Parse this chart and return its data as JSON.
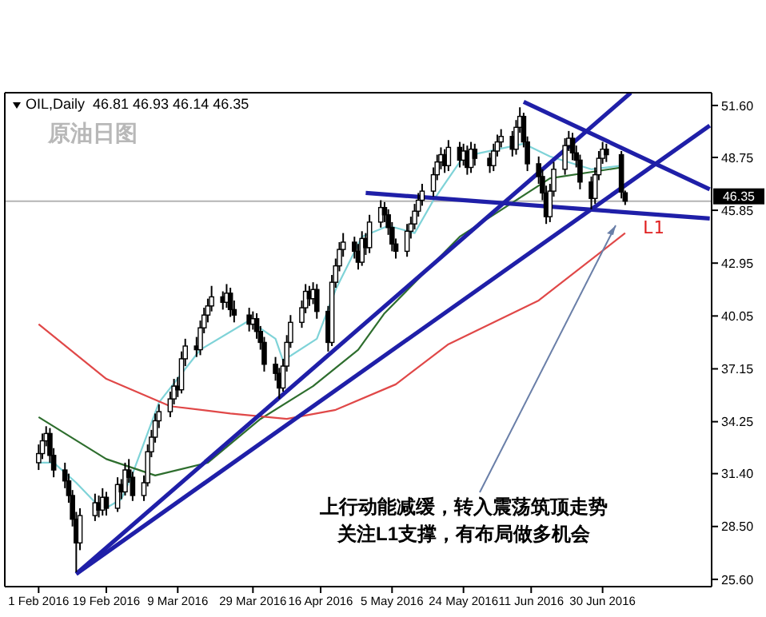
{
  "chart_data": {
    "type": "candlestick",
    "title": "OIL,Daily  46.81 46.93 46.14 46.35",
    "subtitle": "原油日图",
    "x": [
      "2016-02-01",
      "2016-02-02",
      "2016-02-03",
      "2016-02-04",
      "2016-02-05",
      "2016-02-08",
      "2016-02-09",
      "2016-02-10",
      "2016-02-11",
      "2016-02-12",
      "2016-02-16",
      "2016-02-17",
      "2016-02-18",
      "2016-02-19",
      "2016-02-22",
      "2016-02-23",
      "2016-02-24",
      "2016-02-25",
      "2016-02-26",
      "2016-02-29",
      "2016-03-01",
      "2016-03-02",
      "2016-03-03",
      "2016-03-04",
      "2016-03-07",
      "2016-03-08",
      "2016-03-09",
      "2016-03-10",
      "2016-03-11",
      "2016-03-14",
      "2016-03-15",
      "2016-03-16",
      "2016-03-17",
      "2016-03-18",
      "2016-03-21",
      "2016-03-22",
      "2016-03-23",
      "2016-03-24",
      "2016-03-28",
      "2016-03-29",
      "2016-03-30",
      "2016-03-31",
      "2016-04-01",
      "2016-04-04",
      "2016-04-05",
      "2016-04-06",
      "2016-04-07",
      "2016-04-08",
      "2016-04-11",
      "2016-04-12",
      "2016-04-13",
      "2016-04-14",
      "2016-04-15",
      "2016-04-18",
      "2016-04-19",
      "2016-04-20",
      "2016-04-21",
      "2016-04-22",
      "2016-04-25",
      "2016-04-26",
      "2016-04-27",
      "2016-04-28",
      "2016-04-29",
      "2016-05-02",
      "2016-05-03",
      "2016-05-04",
      "2016-05-05",
      "2016-05-06",
      "2016-05-09",
      "2016-05-10",
      "2016-05-11",
      "2016-05-12",
      "2016-05-13",
      "2016-05-16",
      "2016-05-17",
      "2016-05-18",
      "2016-05-19",
      "2016-05-20",
      "2016-05-23",
      "2016-05-24",
      "2016-05-25",
      "2016-05-26",
      "2016-05-27",
      "2016-05-31",
      "2016-06-01",
      "2016-06-02",
      "2016-06-03",
      "2016-06-06",
      "2016-06-07",
      "2016-06-08",
      "2016-06-09",
      "2016-06-10",
      "2016-06-13",
      "2016-06-14",
      "2016-06-15",
      "2016-06-16",
      "2016-06-17",
      "2016-06-20",
      "2016-06-21",
      "2016-06-22",
      "2016-06-23",
      "2016-06-24",
      "2016-06-27",
      "2016-06-28",
      "2016-06-29",
      "2016-06-30",
      "2016-07-01",
      "2016-07-05",
      "2016-07-06"
    ],
    "ohlc": [
      [
        32.0,
        33.0,
        31.6,
        32.5
      ],
      [
        32.5,
        33.6,
        32.2,
        33.2
      ],
      [
        33.2,
        34.0,
        32.9,
        33.6
      ],
      [
        33.6,
        33.9,
        32.0,
        32.4
      ],
      [
        32.4,
        32.8,
        31.2,
        31.6
      ],
      [
        31.6,
        32.0,
        30.6,
        31.0
      ],
      [
        31.0,
        31.4,
        29.8,
        30.2
      ],
      [
        30.2,
        30.5,
        28.5,
        28.9
      ],
      [
        28.9,
        29.3,
        26.0,
        27.6
      ],
      [
        27.6,
        29.5,
        27.2,
        29.1
      ],
      [
        29.1,
        30.3,
        28.8,
        29.8
      ],
      [
        29.8,
        30.2,
        29.0,
        29.4
      ],
      [
        29.4,
        30.6,
        29.1,
        30.1
      ],
      [
        30.1,
        30.4,
        29.1,
        29.5
      ],
      [
        29.5,
        31.2,
        29.3,
        30.8
      ],
      [
        30.8,
        31.1,
        30.0,
        30.4
      ],
      [
        30.4,
        32.0,
        30.2,
        31.6
      ],
      [
        31.6,
        32.2,
        30.9,
        31.2
      ],
      [
        31.2,
        31.5,
        29.9,
        30.2
      ],
      [
        30.2,
        31.3,
        29.9,
        30.9
      ],
      [
        30.9,
        33.0,
        30.7,
        32.6
      ],
      [
        32.6,
        33.8,
        32.3,
        33.4
      ],
      [
        33.4,
        34.7,
        33.1,
        34.3
      ],
      [
        34.3,
        35.2,
        33.9,
        34.8
      ],
      [
        34.8,
        35.9,
        34.5,
        35.5
      ],
      [
        35.5,
        36.6,
        35.2,
        36.2
      ],
      [
        36.2,
        36.7,
        35.6,
        36.0
      ],
      [
        36.0,
        38.1,
        35.8,
        37.7
      ],
      [
        37.7,
        38.8,
        37.3,
        38.4
      ],
      [
        38.4,
        38.9,
        37.8,
        38.2
      ],
      [
        38.2,
        39.8,
        37.9,
        39.4
      ],
      [
        39.4,
        40.5,
        39.1,
        40.1
      ],
      [
        40.1,
        41.0,
        39.7,
        40.6
      ],
      [
        40.6,
        41.7,
        40.3,
        41.1
      ],
      [
        41.1,
        41.4,
        40.4,
        40.8
      ],
      [
        40.8,
        41.8,
        40.5,
        41.3
      ],
      [
        41.3,
        41.6,
        40.0,
        40.4
      ],
      [
        40.4,
        40.9,
        39.7,
        40.1
      ],
      [
        40.1,
        40.5,
        39.2,
        39.6
      ],
      [
        39.6,
        40.3,
        39.3,
        39.9
      ],
      [
        39.9,
        40.2,
        38.8,
        39.2
      ],
      [
        39.2,
        39.5,
        38.2,
        38.6
      ],
      [
        38.6,
        38.9,
        37.0,
        37.4
      ],
      [
        37.4,
        37.8,
        36.5,
        36.9
      ],
      [
        36.9,
        37.2,
        35.5,
        36.1
      ],
      [
        36.1,
        37.7,
        35.9,
        37.3
      ],
      [
        37.3,
        39.0,
        37.0,
        38.6
      ],
      [
        38.6,
        40.1,
        38.3,
        39.7
      ],
      [
        39.7,
        40.9,
        39.4,
        40.5
      ],
      [
        40.5,
        41.8,
        40.2,
        41.4
      ],
      [
        41.4,
        41.7,
        40.6,
        41.0
      ],
      [
        41.0,
        41.9,
        40.7,
        41.5
      ],
      [
        41.5,
        41.8,
        39.9,
        40.3
      ],
      [
        40.3,
        40.6,
        38.1,
        38.6
      ],
      [
        38.6,
        42.3,
        38.4,
        41.9
      ],
      [
        41.9,
        43.2,
        41.6,
        42.8
      ],
      [
        42.8,
        44.1,
        42.5,
        43.7
      ],
      [
        43.7,
        44.6,
        43.3,
        44.1
      ],
      [
        44.1,
        44.4,
        43.2,
        43.6
      ],
      [
        43.6,
        44.0,
        42.6,
        43.0
      ],
      [
        43.0,
        44.7,
        42.8,
        44.3
      ],
      [
        44.3,
        44.6,
        43.4,
        43.8
      ],
      [
        43.8,
        45.6,
        43.5,
        45.2
      ],
      [
        45.2,
        46.4,
        44.9,
        46.0
      ],
      [
        46.0,
        46.3,
        45.2,
        45.6
      ],
      [
        45.6,
        45.9,
        44.5,
        44.9
      ],
      [
        44.9,
        45.2,
        43.6,
        44.0
      ],
      [
        44.0,
        44.3,
        43.2,
        43.6
      ],
      [
        43.6,
        45.1,
        43.3,
        44.7
      ],
      [
        44.7,
        45.5,
        44.3,
        45.1
      ],
      [
        45.1,
        46.2,
        44.8,
        45.8
      ],
      [
        45.8,
        46.8,
        45.5,
        46.4
      ],
      [
        46.4,
        47.3,
        46.1,
        46.9
      ],
      [
        46.9,
        48.2,
        46.6,
        47.8
      ],
      [
        47.8,
        48.9,
        47.5,
        48.5
      ],
      [
        48.5,
        49.3,
        48.1,
        48.9
      ],
      [
        48.9,
        49.2,
        47.9,
        48.3
      ],
      [
        48.3,
        49.7,
        48.0,
        49.3
      ],
      [
        49.3,
        49.6,
        48.2,
        48.6
      ],
      [
        48.6,
        49.5,
        48.3,
        49.1
      ],
      [
        49.1,
        49.4,
        47.8,
        48.2
      ],
      [
        48.2,
        49.6,
        47.9,
        49.2
      ],
      [
        49.2,
        49.5,
        48.3,
        48.7
      ],
      [
        48.7,
        49.0,
        47.9,
        48.3
      ],
      [
        48.3,
        49.5,
        48.0,
        49.1
      ],
      [
        49.1,
        50.0,
        48.8,
        49.6
      ],
      [
        49.6,
        50.3,
        49.3,
        49.9
      ],
      [
        49.9,
        50.2,
        48.8,
        49.2
      ],
      [
        49.2,
        50.8,
        48.9,
        50.4
      ],
      [
        50.4,
        51.5,
        50.1,
        51.0
      ],
      [
        51.0,
        51.2,
        49.3,
        49.6
      ],
      [
        49.6,
        49.9,
        48.0,
        48.4
      ],
      [
        48.4,
        48.8,
        47.3,
        47.7
      ],
      [
        47.7,
        48.1,
        46.4,
        46.8
      ],
      [
        46.8,
        47.2,
        45.1,
        45.5
      ],
      [
        45.5,
        47.3,
        45.2,
        46.9
      ],
      [
        46.9,
        48.5,
        46.6,
        48.1
      ],
      [
        48.1,
        49.8,
        47.8,
        49.4
      ],
      [
        49.4,
        50.2,
        49.1,
        49.8
      ],
      [
        49.8,
        50.1,
        48.6,
        49.0
      ],
      [
        49.0,
        49.4,
        48.2,
        48.6
      ],
      [
        48.6,
        48.9,
        47.0,
        47.4
      ],
      [
        47.4,
        47.7,
        45.9,
        46.5
      ],
      [
        46.5,
        48.2,
        46.2,
        47.8
      ],
      [
        47.8,
        49.1,
        47.5,
        48.7
      ],
      [
        48.7,
        49.6,
        48.4,
        49.2
      ],
      [
        49.2,
        49.5,
        48.5,
        48.9
      ],
      [
        48.9,
        49.1,
        46.5,
        46.85
      ],
      [
        46.81,
        46.93,
        46.14,
        46.35
      ]
    ],
    "series": [
      {
        "type": "line",
        "color": "#7fd3d8",
        "x": [
          "2016-02-01",
          "2016-02-05",
          "2016-02-11",
          "2016-02-18",
          "2016-02-23",
          "2016-02-26",
          "2016-03-04",
          "2016-03-15",
          "2016-03-28",
          "2016-04-04",
          "2016-04-06",
          "2016-04-15",
          "2016-04-20",
          "2016-04-27",
          "2016-05-04",
          "2016-05-11",
          "2016-05-16",
          "2016-05-24",
          "2016-06-09",
          "2016-06-16",
          "2016-06-27",
          "2016-07-05"
        ],
        "values": [
          32.0,
          32.0,
          30.9,
          29.4,
          30.0,
          31.4,
          35.3,
          38.2,
          39.8,
          38.8,
          37.6,
          38.8,
          41.5,
          44.4,
          45.0,
          44.6,
          46.4,
          48.8,
          49.5,
          48.8,
          48.1,
          48.3
        ]
      },
      {
        "type": "line",
        "color": "#2e6e2e",
        "x": [
          "2016-02-01",
          "2016-02-19",
          "2016-03-03",
          "2016-03-17",
          "2016-03-31",
          "2016-04-14",
          "2016-04-26",
          "2016-05-03",
          "2016-05-23",
          "2016-06-16",
          "2016-07-05"
        ],
        "values": [
          34.5,
          32.2,
          31.3,
          32.0,
          34.4,
          36.2,
          38.2,
          40.2,
          44.4,
          47.6,
          48.2
        ]
      },
      {
        "type": "line",
        "color": "#e04848",
        "x": [
          "2016-02-01",
          "2016-02-19",
          "2016-03-07",
          "2016-03-23",
          "2016-04-07",
          "2016-04-20",
          "2016-05-06",
          "2016-05-20",
          "2016-06-13",
          "2016-07-06"
        ],
        "values": [
          39.6,
          36.6,
          35.1,
          34.7,
          34.4,
          34.9,
          36.3,
          38.5,
          40.9,
          44.6
        ]
      },
      {
        "type": "line",
        "color": "#1f1fa8",
        "x": [
          "2016-02-11",
          "2016-07-07T12:00"
        ],
        "values": [
          25.9,
          52.3
        ]
      },
      {
        "type": "line",
        "color": "#1f1fa8",
        "x": [
          "2016-02-11",
          "2016-07-28T12:00"
        ],
        "values": [
          25.9,
          50.5
        ]
      },
      {
        "type": "line",
        "color": "#1f1fa8",
        "x": [
          "2016-06-09",
          "2016-07-28T12:00"
        ],
        "values": [
          51.8,
          47.0
        ]
      },
      {
        "type": "line",
        "color": "#1f1fa8",
        "x": [
          "2016-04-28",
          "2016-07-28T12:00"
        ],
        "values": [
          46.8,
          45.4
        ]
      }
    ],
    "ref_lines": [
      {
        "axis": "y",
        "value": 46.35,
        "label": "46.35",
        "color": "#b4b4b4"
      }
    ],
    "annotations": [
      "L1",
      "上行动能减缓，转入震荡筑顶走势",
      "关注L1支撑，有布局做多机会"
    ],
    "xlim": [
      "2016-01-23",
      "2016-07-29"
    ],
    "xticks": [
      {
        "value": "2016-02-01",
        "label": "1 Feb 2016"
      },
      {
        "value": "2016-02-19",
        "label": "19 Feb 2016"
      },
      {
        "value": "2016-03-09",
        "label": "9 Mar 2016"
      },
      {
        "value": "2016-03-29",
        "label": "29 Mar 2016"
      },
      {
        "value": "2016-04-16",
        "label": "16 Apr 2016"
      },
      {
        "value": "2016-05-05",
        "label": "5 May 2016"
      },
      {
        "value": "2016-05-24",
        "label": "24 May 2016"
      },
      {
        "value": "2016-06-11",
        "label": "11 Jun 2016"
      },
      {
        "value": "2016-06-30",
        "label": "30 Jun 2016"
      }
    ],
    "ylim": [
      25.2,
      52.3
    ],
    "yticks": [
      {
        "value": 25.6,
        "label": "25.60"
      },
      {
        "value": 28.5,
        "label": "28.50"
      },
      {
        "value": 31.4,
        "label": "31.40"
      },
      34.25,
      37.15,
      40.05,
      42.95,
      45.85,
      48.75,
      {
        "value": 51.6,
        "label": "51.60"
      }
    ]
  }
}
